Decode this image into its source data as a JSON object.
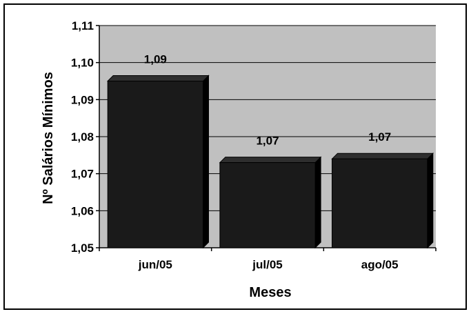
{
  "chart_data": {
    "type": "bar",
    "categories": [
      "jun/05",
      "jul/05",
      "ago/05"
    ],
    "values": [
      1.095,
      1.073,
      1.074
    ],
    "data_labels": [
      "1,09",
      "1,07",
      "1,07"
    ],
    "title": "",
    "xlabel": "Meses",
    "ylabel": "Nº Salários Mínimos",
    "ylim": [
      1.05,
      1.11
    ],
    "yticks": [
      1.05,
      1.06,
      1.07,
      1.08,
      1.09,
      1.1,
      1.11
    ],
    "ytick_labels": [
      "1,05",
      "1,06",
      "1,07",
      "1,08",
      "1,09",
      "1,10",
      "1,11"
    ],
    "grid": true,
    "legend": "none",
    "style": "3d",
    "colors": {
      "plot_background": "#c0c0c0",
      "bar_front": "#1a1a1a",
      "bar_side": "#000000",
      "bar_top": "#2e2e2e",
      "gridline": "#000000"
    }
  }
}
